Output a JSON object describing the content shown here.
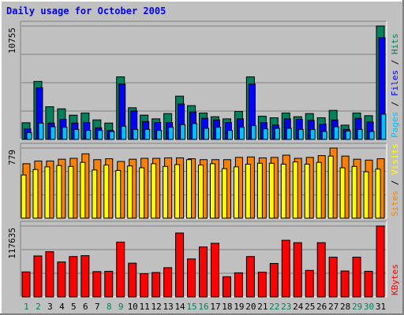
{
  "chart_data": {
    "type": "bar",
    "title": "Daily usage for October 2005",
    "categories": [
      "1",
      "2",
      "3",
      "4",
      "5",
      "6",
      "7",
      "8",
      "9",
      "10",
      "11",
      "12",
      "13",
      "14",
      "15",
      "16",
      "17",
      "18",
      "19",
      "20",
      "21",
      "22",
      "23",
      "24",
      "25",
      "26",
      "27",
      "28",
      "29",
      "30",
      "31"
    ],
    "weekend_days": [
      "1",
      "2",
      "8",
      "9",
      "15",
      "16",
      "22",
      "23",
      "29",
      "30"
    ],
    "colors": {
      "background": "#c0c0c0",
      "title": "#0000ff",
      "grid": "#808080",
      "hits": "#00805c",
      "files": "#0000ff",
      "pages": "#00c0ff",
      "visits": "#ffff00",
      "sites": "#ff8000",
      "kbytes": "#ff0000",
      "weekday_label": "#000000",
      "weekend_label": "#00805c"
    },
    "panels": [
      {
        "id": "hits-files-pages",
        "max_label": "10755",
        "ylim": [
          0,
          10755
        ],
        "legend": [
          {
            "text": "Pages",
            "color": "#00c0ff"
          },
          {
            "text": " / ",
            "color": "#000000"
          },
          {
            "text": "Files",
            "color": "#0000ff"
          },
          {
            "text": " / ",
            "color": "#000000"
          },
          {
            "text": "Hits",
            "color": "#00805c"
          }
        ],
        "series": [
          {
            "name": "Hits",
            "values": [
              1580,
              5500,
              3100,
              2900,
              2300,
              2500,
              1850,
              1550,
              5930,
              3000,
              2300,
              1950,
              2450,
              4100,
              3200,
              2500,
              2150,
              1950,
              2650,
              5930,
              2200,
              2050,
              2500,
              2150,
              2450,
              2050,
              2750,
              1350,
              2500,
              2250,
              10755
            ]
          },
          {
            "name": "Files",
            "values": [
              1000,
              4900,
              1550,
              1900,
              1550,
              1600,
              1100,
              850,
              5250,
              2700,
              1700,
              1600,
              1600,
              3350,
              2600,
              2000,
              1850,
              1600,
              1950,
              5250,
              1600,
              1350,
              1950,
              1900,
              1800,
              1450,
              1850,
              950,
              2000,
              1650,
              9650
            ]
          },
          {
            "name": "Pages",
            "values": [
              650,
              1550,
              1200,
              1150,
              950,
              850,
              850,
              750,
              1250,
              950,
              950,
              850,
              1150,
              1400,
              1500,
              1050,
              1150,
              850,
              1150,
              1300,
              1000,
              1050,
              1050,
              950,
              950,
              750,
              1200,
              800,
              950,
              750,
              2400
            ]
          }
        ]
      },
      {
        "id": "visits-sites",
        "max_label": "779",
        "ylim": [
          0,
          779
        ],
        "legend": [
          {
            "text": "Sites",
            "color": "#ff8000"
          },
          {
            "text": " / ",
            "color": "#000000"
          },
          {
            "text": "Visits",
            "color": "#ffff00"
          }
        ],
        "series": [
          {
            "name": "Sites",
            "values": [
              605,
              635,
              635,
              655,
              665,
              715,
              650,
              660,
              630,
              655,
              665,
              665,
              670,
              670,
              660,
              650,
              650,
              650,
              675,
              680,
              670,
              675,
              700,
              665,
              675,
              695,
              779,
              690,
              655,
              645,
              660
            ]
          },
          {
            "name": "Visits",
            "values": [
              480,
              540,
              570,
              585,
              575,
              620,
              535,
              590,
              530,
              580,
              560,
              605,
              575,
              595,
              650,
              590,
              605,
              550,
              570,
              600,
              610,
              610,
              600,
              625,
              600,
              620,
              690,
              560,
              575,
              515,
              545
            ]
          }
        ]
      },
      {
        "id": "kbytes",
        "max_label": "117635",
        "ylim": [
          0,
          117635
        ],
        "legend": [
          {
            "text": "KBytes",
            "color": "#ff0000"
          }
        ],
        "series": [
          {
            "name": "KBytes",
            "values": [
              41500,
              68000,
              75000,
              58000,
              67000,
              68500,
              42000,
              42500,
              91000,
              56000,
              38500,
              40500,
              48500,
              106000,
              63000,
              83000,
              89000,
              33500,
              40000,
              67000,
              41000,
              55500,
              94000,
              90000,
              44000,
              90000,
              66000,
              43000,
              66000,
              42500,
              117635
            ]
          }
        ]
      }
    ]
  }
}
